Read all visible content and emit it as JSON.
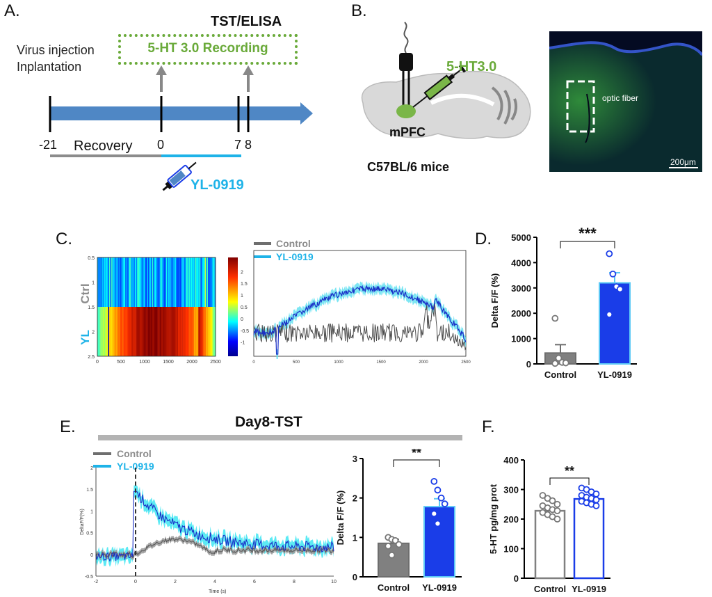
{
  "panelA": {
    "letter": "A.",
    "virus_line1": "Virus injection",
    "virus_line2": "Inplantation",
    "tst_elisa": "TST/ELISA",
    "recording": "5-HT 3.0 Recording",
    "ticks": [
      "-21",
      "0",
      "7",
      "8"
    ],
    "recovery": "Recovery",
    "drug": "YL-0919"
  },
  "panelB": {
    "letter": "B.",
    "sensor": "5-HT3.0",
    "region": "mPFC",
    "strain": "C57BL/6 mice",
    "fiber_label": "optic fiber",
    "scale_bar": "200μm"
  },
  "panelC": {
    "letter": "C.",
    "heatmap_rows": [
      "Ctrl",
      "YL"
    ],
    "heatmap_yticks": [
      "0.5",
      "1",
      "1.5",
      "2",
      "2.5"
    ],
    "heatmap_xticks": [
      "0",
      "500",
      "1000",
      "1500",
      "2000",
      "2500"
    ],
    "colorbar_ticks": [
      "2",
      "1.5",
      "1",
      "0.5",
      "0",
      "-0.5",
      "-1"
    ],
    "trace_xticks": [
      "0",
      "500",
      "1000",
      "1500",
      "2000",
      "2500"
    ],
    "legend_control": "Control",
    "legend_yl": "YL-0919"
  },
  "panelE": {
    "letter": "E.",
    "title": "Day8-TST",
    "legend_control": "Control",
    "legend_yl": "YL-0919",
    "xlabel": "Time (s)",
    "ylabel": "DeltaF/F(%)",
    "xticks": [
      "-2",
      "0",
      "2",
      "4",
      "6",
      "8",
      "10"
    ],
    "yticks": [
      "2",
      "1.5",
      "1",
      "0.5",
      "0",
      "-0.5"
    ]
  },
  "colors": {
    "control": "#808080",
    "yl": "#1a3de8",
    "cyan": "#1eb3e8",
    "green": "#6aaa3a",
    "arrow_blue": "#4f87c5"
  },
  "chart_data": [
    {
      "id": "D",
      "letter": "D.",
      "type": "bar",
      "categories": [
        "Control",
        "YL-0919"
      ],
      "values": [
        430,
        3200
      ],
      "errors": [
        330,
        400
      ],
      "points": [
        [
          1800,
          230,
          60,
          40,
          20
        ],
        [
          4350,
          3550,
          3050,
          2950,
          1950
        ]
      ],
      "ylabel": "Delta F/F  (%)",
      "ylim": [
        0,
        5000
      ],
      "yticks": [
        "0",
        "1000",
        "2000",
        "3000",
        "4000",
        "5000"
      ],
      "significance": "***"
    },
    {
      "id": "E-bar",
      "type": "bar",
      "categories": [
        "Control",
        "YL-0919"
      ],
      "values": [
        0.85,
        1.78
      ],
      "errors": [
        0.1,
        0.2
      ],
      "points": [
        [
          1.0,
          0.95,
          0.92,
          0.82,
          0.78,
          0.55
        ],
        [
          2.42,
          2.2,
          2.0,
          1.85,
          1.6,
          1.35
        ]
      ],
      "ylabel": "Delta F/F  (%)",
      "ylim": [
        0,
        3
      ],
      "yticks": [
        "0",
        "1",
        "2",
        "3"
      ],
      "significance": "**"
    },
    {
      "id": "F",
      "letter": "F.",
      "type": "bar",
      "categories": [
        "Control",
        "YL-0919"
      ],
      "values": [
        228,
        268
      ],
      "errors": [
        8,
        5
      ],
      "points": [
        [
          280,
          270,
          262,
          250,
          245,
          238,
          232,
          228,
          222,
          215,
          208,
          200
        ],
        [
          305,
          300,
          292,
          285,
          280,
          274,
          270,
          265,
          260,
          255,
          250,
          245
        ]
      ],
      "ylabel": "5-HT pg/mg prot",
      "ylim": [
        0,
        400
      ],
      "yticks": [
        "0",
        "100",
        "200",
        "300",
        "400"
      ],
      "significance": "**"
    }
  ]
}
